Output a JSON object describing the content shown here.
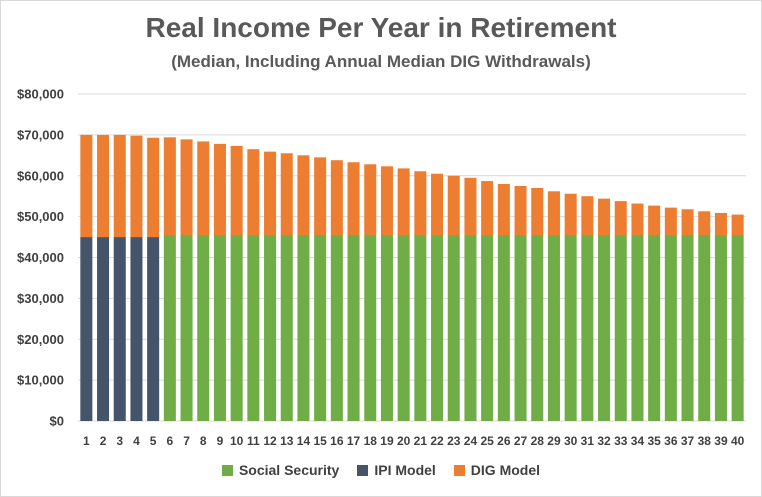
{
  "chart_data": {
    "type": "bar",
    "stacked": true,
    "title": "Real Income Per Year in Retirement",
    "subtitle": "(Median, Including Annual Median DIG Withdrawals)",
    "xlabel": "",
    "ylabel": "",
    "ylim": [
      0,
      80000
    ],
    "yticks": [
      "$0",
      "$10,000",
      "$20,000",
      "$30,000",
      "$40,000",
      "$50,000",
      "$60,000",
      "$70,000",
      "$80,000"
    ],
    "grid": true,
    "legend_position": "bottom",
    "categories": [
      "1",
      "2",
      "3",
      "4",
      "5",
      "6",
      "7",
      "8",
      "9",
      "10",
      "11",
      "12",
      "13",
      "14",
      "15",
      "16",
      "17",
      "18",
      "19",
      "20",
      "21",
      "22",
      "23",
      "24",
      "25",
      "26",
      "27",
      "28",
      "29",
      "30",
      "31",
      "32",
      "33",
      "34",
      "35",
      "36",
      "37",
      "38",
      "39",
      "40"
    ],
    "series": [
      {
        "name": "Social Security",
        "color": "#70ad47",
        "values": [
          0,
          0,
          0,
          0,
          0,
          45500,
          45500,
          45500,
          45500,
          45500,
          45500,
          45500,
          45500,
          45500,
          45500,
          45500,
          45500,
          45500,
          45500,
          45500,
          45500,
          45500,
          45500,
          45500,
          45500,
          45500,
          45500,
          45500,
          45500,
          45500,
          45500,
          45500,
          45500,
          45500,
          45500,
          45500,
          45500,
          45500,
          45500,
          45500
        ]
      },
      {
        "name": "IPI Model",
        "color": "#44546a",
        "values": [
          45000,
          45000,
          45000,
          45000,
          45000,
          0,
          0,
          0,
          0,
          0,
          0,
          0,
          0,
          0,
          0,
          0,
          0,
          0,
          0,
          0,
          0,
          0,
          0,
          0,
          0,
          0,
          0,
          0,
          0,
          0,
          0,
          0,
          0,
          0,
          0,
          0,
          0,
          0,
          0,
          0
        ]
      },
      {
        "name": "DIG Model",
        "color": "#ed7d31",
        "values": [
          25000,
          25000,
          25000,
          24800,
          24300,
          23900,
          23400,
          22900,
          22300,
          21800,
          21000,
          20400,
          20000,
          19500,
          19000,
          18300,
          17800,
          17300,
          16800,
          16300,
          15600,
          15000,
          14500,
          14000,
          13200,
          12500,
          12000,
          11500,
          10700,
          10100,
          9500,
          8900,
          8300,
          7700,
          7200,
          6700,
          6300,
          5800,
          5400,
          5000
        ]
      }
    ]
  }
}
